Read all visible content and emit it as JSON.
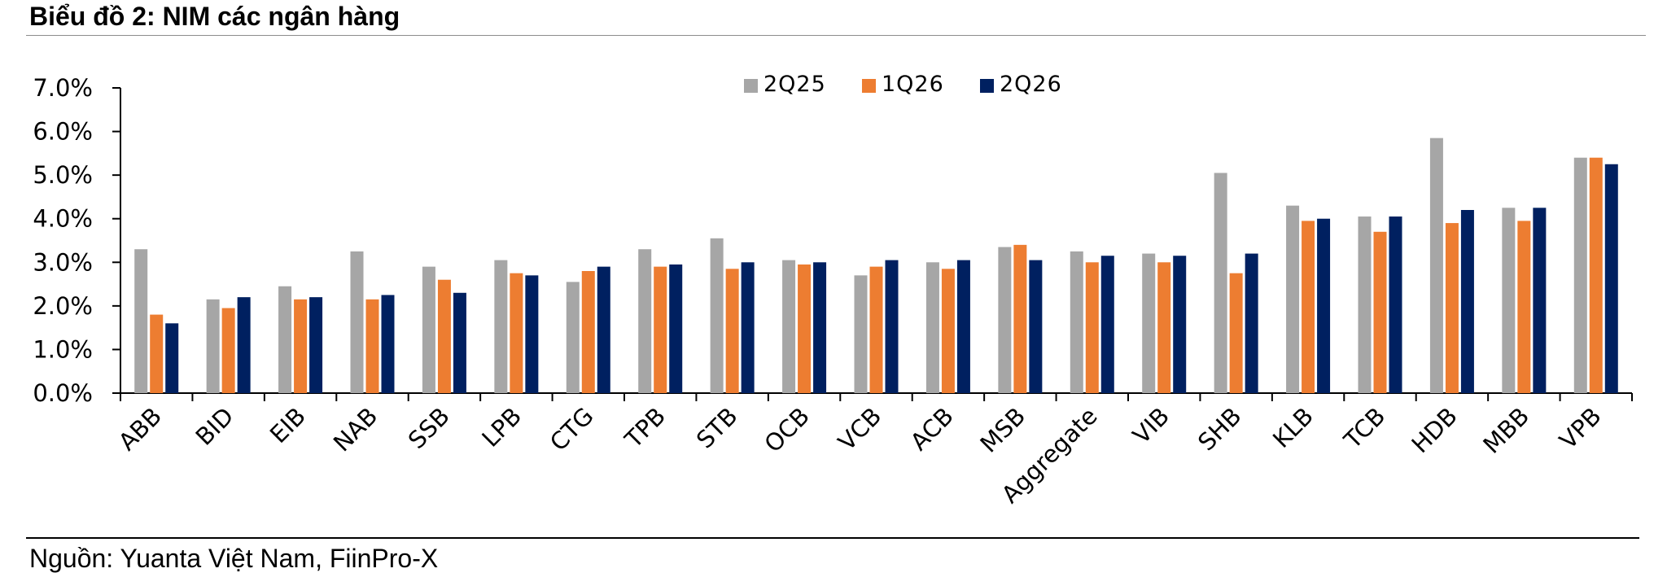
{
  "header": {
    "title": "Biểu đồ 2:  NIM các ngân hàng"
  },
  "footer": {
    "source": "Nguồn: Yuanta Việt Nam, FiinPro-X"
  },
  "colors": {
    "2Q25": "#a6a6a6",
    "1Q26": "#ed7d31",
    "2Q26": "#002060"
  },
  "chart_data": {
    "type": "bar",
    "title": "NIM các ngân hàng",
    "xlabel": "",
    "ylabel": "",
    "ylim": [
      0,
      7
    ],
    "yticks": [
      "0.0%",
      "1.0%",
      "2.0%",
      "3.0%",
      "4.0%",
      "5.0%",
      "6.0%",
      "7.0%"
    ],
    "grid": false,
    "legend_position": "top-center",
    "categories": [
      "ABB",
      "BID",
      "EIB",
      "NAB",
      "SSB",
      "LPB",
      "CTG",
      "TPB",
      "STB",
      "OCB",
      "VCB",
      "ACB",
      "MSB",
      "Aggregate",
      "VIB",
      "SHB",
      "KLB",
      "TCB",
      "HDB",
      "MBB",
      "VPB"
    ],
    "series": [
      {
        "name": "2Q25",
        "color": "#a6a6a6",
        "values": [
          3.3,
          2.15,
          2.45,
          3.25,
          2.9,
          3.05,
          2.55,
          3.3,
          3.55,
          3.05,
          2.7,
          3.0,
          3.35,
          3.25,
          3.2,
          5.05,
          4.3,
          4.05,
          5.85,
          4.25,
          5.4
        ]
      },
      {
        "name": "1Q26",
        "color": "#ed7d31",
        "values": [
          1.8,
          1.95,
          2.15,
          2.15,
          2.6,
          2.75,
          2.8,
          2.9,
          2.85,
          2.95,
          2.9,
          2.85,
          3.4,
          3.0,
          3.0,
          2.75,
          3.95,
          3.7,
          3.9,
          3.95,
          5.4
        ]
      },
      {
        "name": "2Q26",
        "color": "#002060",
        "values": [
          1.6,
          2.2,
          2.2,
          2.25,
          2.3,
          2.7,
          2.9,
          2.95,
          3.0,
          3.0,
          3.05,
          3.05,
          3.05,
          3.15,
          3.15,
          3.2,
          4.0,
          4.05,
          4.2,
          4.25,
          5.25
        ]
      }
    ]
  }
}
